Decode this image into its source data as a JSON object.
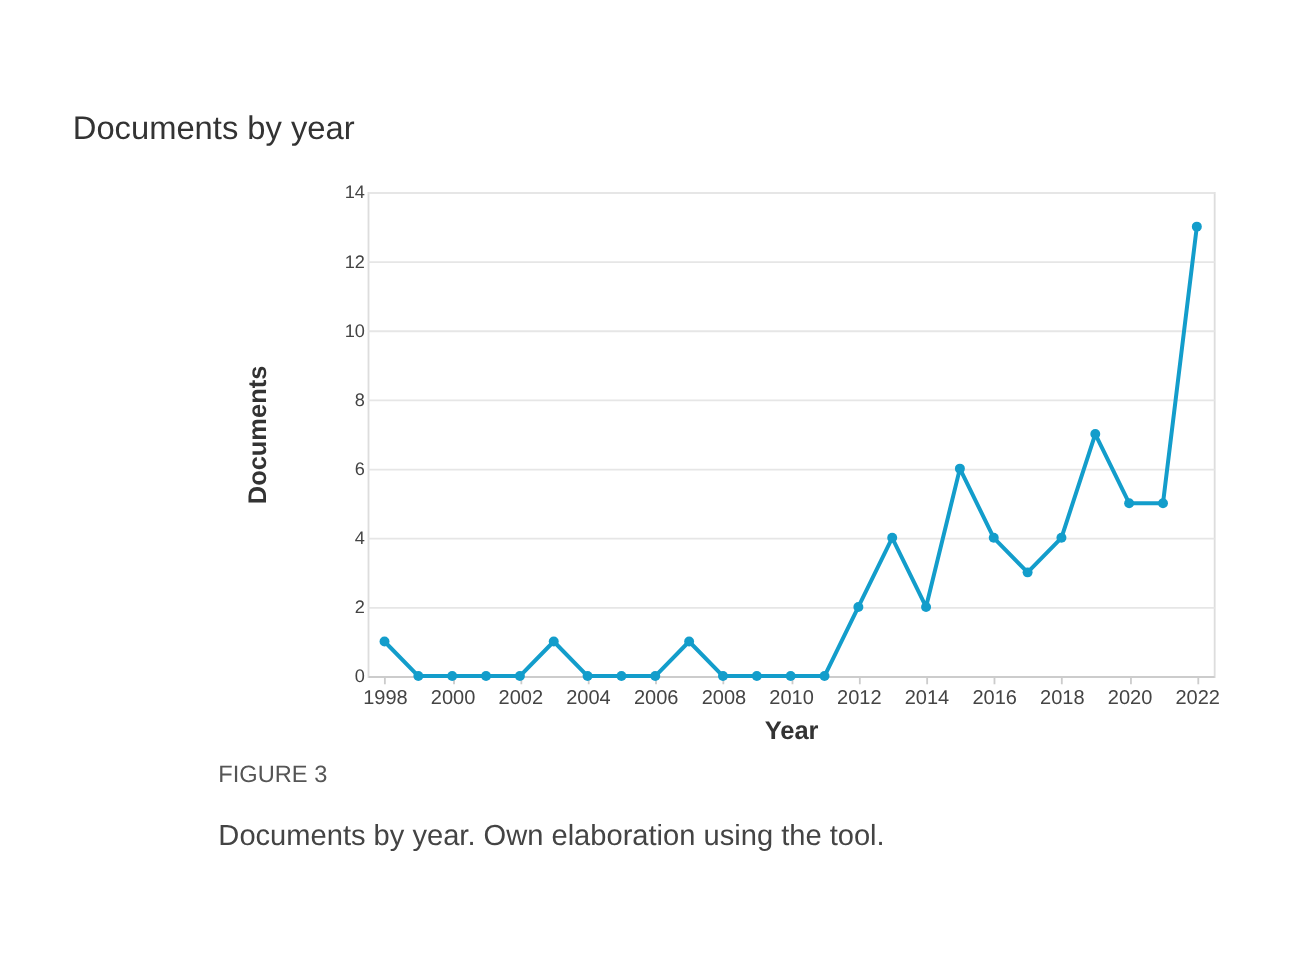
{
  "chart_data": {
    "type": "line",
    "title": "Documents by year",
    "xlabel": "Year",
    "ylabel": "Documents",
    "x": [
      1998,
      1999,
      2000,
      2001,
      2002,
      2003,
      2004,
      2005,
      2006,
      2007,
      2008,
      2009,
      2010,
      2011,
      2012,
      2013,
      2014,
      2015,
      2016,
      2017,
      2018,
      2019,
      2020,
      2021,
      2022
    ],
    "series": [
      {
        "color": "#139dcb",
        "values": [
          1,
          0,
          0,
          0,
          0,
          1,
          0,
          0,
          0,
          1,
          0,
          0,
          0,
          0,
          2,
          4,
          2,
          6,
          4,
          3,
          4,
          7,
          5,
          5,
          13
        ]
      }
    ],
    "xlim": [
      1997.5,
      2022.5
    ],
    "xticks": [
      1998,
      2000,
      2002,
      2004,
      2006,
      2008,
      2010,
      2012,
      2014,
      2016,
      2018,
      2020,
      2022
    ],
    "ylim": [
      0,
      14
    ],
    "yticks": [
      0,
      2,
      4,
      6,
      8,
      10,
      12,
      14
    ],
    "grid": "y",
    "marker": "circle",
    "line_style": "solid",
    "annotations": [
      "FIGURE 3",
      "Documents by year. Own elaboration using the tool."
    ]
  }
}
